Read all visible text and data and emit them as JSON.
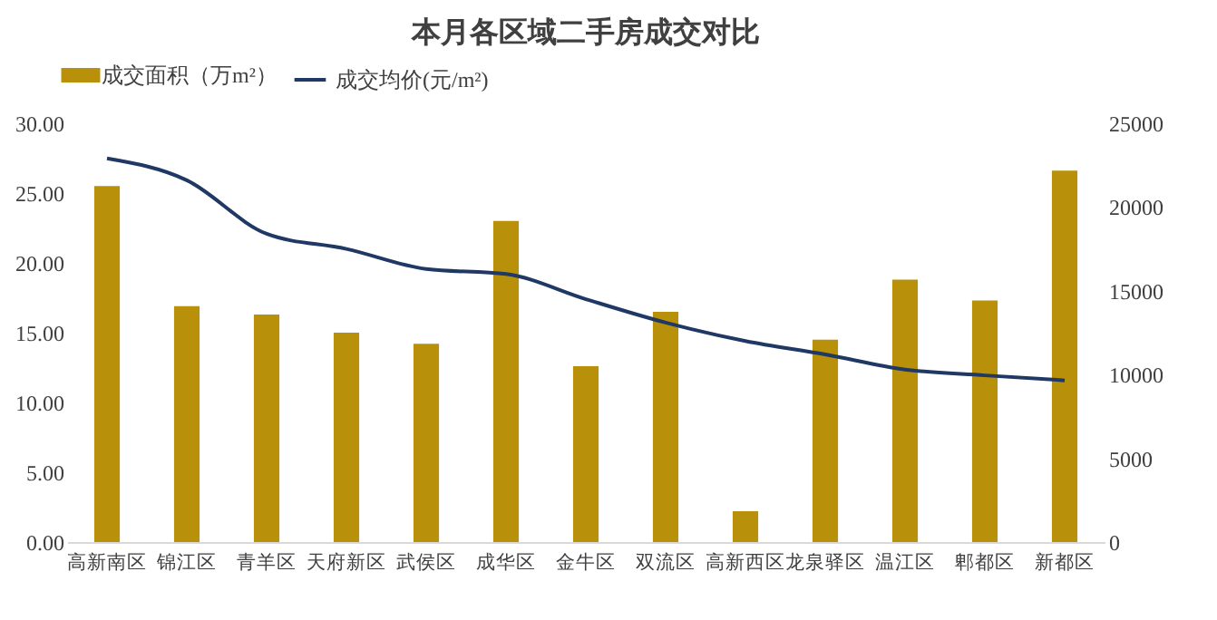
{
  "chart_data": {
    "type": "bar",
    "title": "本月各区域二手房成交对比",
    "categories": [
      "高新南区",
      "锦江区",
      "青羊区",
      "天府新区",
      "武侯区",
      "成华区",
      "金牛区",
      "双流区",
      "高新西区",
      "龙泉驿区",
      "温江区",
      "郫都区",
      "新都区"
    ],
    "series": [
      {
        "name": "成交面积（万m²）",
        "color": "#b8900a",
        "values": [
          25.5,
          16.9,
          16.3,
          15.0,
          14.2,
          23.0,
          12.6,
          16.5,
          2.2,
          14.5,
          18.8,
          17.3,
          26.6
        ]
      },
      {
        "name": "成交均价(元/m²)",
        "type": "line",
        "axis": "y2",
        "color": "#1f3864",
        "values": [
          22900,
          21600,
          18400,
          17500,
          16300,
          16000,
          14500,
          13100,
          12000,
          11200,
          10300,
          9950,
          9650
        ]
      }
    ],
    "ylim": [
      0,
      30
    ],
    "yticks": [
      {
        "value": 0,
        "label": "0.00"
      },
      {
        "value": 5,
        "label": "5.00"
      },
      {
        "value": 10,
        "label": "10.00"
      },
      {
        "value": 15,
        "label": "15.00"
      },
      {
        "value": 20,
        "label": "20.00"
      },
      {
        "value": 25,
        "label": "25.00"
      },
      {
        "value": 30,
        "label": "30.00"
      }
    ],
    "y2lim": [
      0,
      25000
    ],
    "y2ticks": [
      0,
      5000,
      10000,
      15000,
      20000,
      25000
    ],
    "grid": false,
    "legend": "top",
    "marker": "none",
    "line_style": "solid"
  }
}
